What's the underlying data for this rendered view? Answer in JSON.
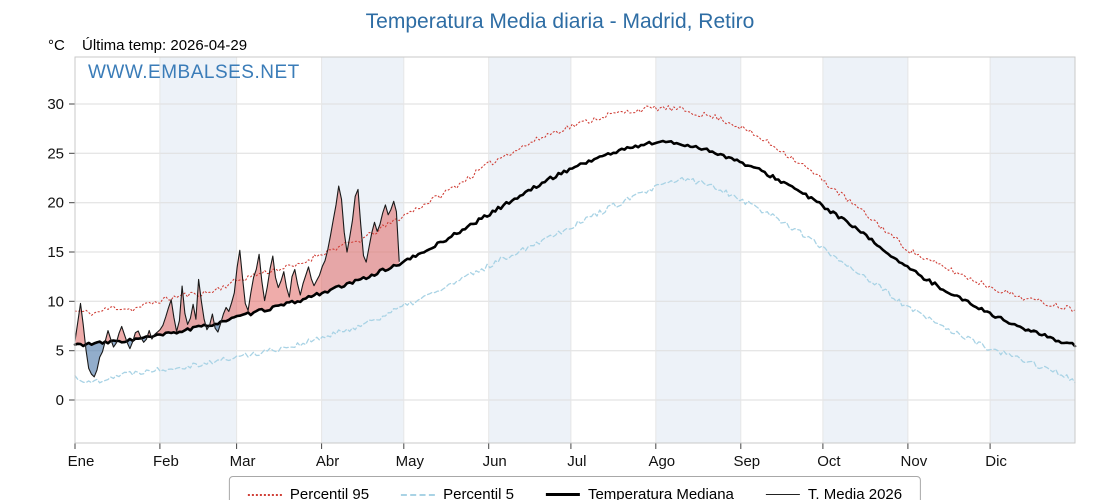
{
  "header": {
    "title": "Temperatura Media diaria - Madrid, Retiro",
    "unit_label": "°C",
    "last_temp_label": "Última temp: 2026-04-29",
    "watermark": "WWW.EMBALSES.NET",
    "title_color": "#2e6da4"
  },
  "legend": {
    "items": [
      "Percentil 95",
      "Percentil 5",
      "Temperatura Mediana",
      "T. Media 2026"
    ]
  },
  "chart_data": {
    "type": "line",
    "title": "Temperatura Media diaria - Madrid, Retiro",
    "ylabel": "°C",
    "ylim": [
      -4.4,
      34.8
    ],
    "yticks": [
      0,
      5,
      10,
      15,
      20,
      25,
      30
    ],
    "x_tick_labels": [
      "Ene",
      "Feb",
      "Mar",
      "Abr",
      "May",
      "Jun",
      "Jul",
      "Ago",
      "Sep",
      "Oct",
      "Nov",
      "Dic"
    ],
    "month_start_days": [
      0,
      31,
      59,
      90,
      120,
      151,
      181,
      212,
      243,
      273,
      304,
      334
    ],
    "days_in_year": 365,
    "grid": true,
    "legend_position": "bottom",
    "band_color": "#edf2f8",
    "fill_above_color": "#e05a55",
    "fill_below_color": "#4a76a8",
    "series": [
      {
        "name": "Percentil 95",
        "color": "#d04038",
        "style": "dotted",
        "width": 1.1,
        "points": [
          [
            1,
            9.0
          ],
          [
            8,
            8.8
          ],
          [
            15,
            9.4
          ],
          [
            22,
            9.2
          ],
          [
            31,
            10.0
          ],
          [
            40,
            10.6
          ],
          [
            50,
            10.9
          ],
          [
            59,
            12.0
          ],
          [
            68,
            12.8
          ],
          [
            75,
            13.3
          ],
          [
            82,
            13.6
          ],
          [
            90,
            14.8
          ],
          [
            98,
            15.6
          ],
          [
            105,
            16.2
          ],
          [
            112,
            17.3
          ],
          [
            120,
            18.6
          ],
          [
            128,
            19.8
          ],
          [
            135,
            20.9
          ],
          [
            143,
            22.3
          ],
          [
            151,
            23.8
          ],
          [
            158,
            24.9
          ],
          [
            165,
            25.8
          ],
          [
            173,
            26.9
          ],
          [
            181,
            27.7
          ],
          [
            188,
            28.3
          ],
          [
            195,
            28.9
          ],
          [
            202,
            29.2
          ],
          [
            208,
            29.5
          ],
          [
            215,
            29.6
          ],
          [
            222,
            29.4
          ],
          [
            228,
            29.0
          ],
          [
            235,
            28.6
          ],
          [
            243,
            27.7
          ],
          [
            250,
            26.6
          ],
          [
            258,
            25.3
          ],
          [
            265,
            24.0
          ],
          [
            273,
            22.3
          ],
          [
            280,
            20.8
          ],
          [
            288,
            19.0
          ],
          [
            296,
            17.2
          ],
          [
            304,
            15.3
          ],
          [
            311,
            14.2
          ],
          [
            318,
            13.4
          ],
          [
            326,
            12.4
          ],
          [
            334,
            11.5
          ],
          [
            342,
            10.7
          ],
          [
            350,
            10.1
          ],
          [
            358,
            9.6
          ],
          [
            365,
            9.2
          ]
        ]
      },
      {
        "name": "Percentil 5",
        "color": "#a9d3e5",
        "style": "dashed",
        "width": 1.3,
        "points": [
          [
            1,
            2.4
          ],
          [
            6,
            1.7
          ],
          [
            12,
            2.2
          ],
          [
            18,
            2.6
          ],
          [
            25,
            2.9
          ],
          [
            31,
            3.1
          ],
          [
            40,
            3.4
          ],
          [
            50,
            3.8
          ],
          [
            59,
            4.3
          ],
          [
            68,
            4.8
          ],
          [
            75,
            5.2
          ],
          [
            82,
            5.6
          ],
          [
            90,
            6.2
          ],
          [
            98,
            6.9
          ],
          [
            105,
            7.6
          ],
          [
            112,
            8.4
          ],
          [
            120,
            9.4
          ],
          [
            128,
            10.4
          ],
          [
            135,
            11.3
          ],
          [
            143,
            12.4
          ],
          [
            151,
            13.5
          ],
          [
            158,
            14.5
          ],
          [
            165,
            15.4
          ],
          [
            173,
            16.5
          ],
          [
            181,
            17.5
          ],
          [
            188,
            18.5
          ],
          [
            195,
            19.4
          ],
          [
            202,
            20.3
          ],
          [
            208,
            21.0
          ],
          [
            215,
            21.8
          ],
          [
            222,
            22.4
          ],
          [
            228,
            22.1
          ],
          [
            235,
            21.5
          ],
          [
            243,
            20.4
          ],
          [
            250,
            19.4
          ],
          [
            258,
            18.2
          ],
          [
            265,
            17.0
          ],
          [
            273,
            15.4
          ],
          [
            280,
            14.1
          ],
          [
            288,
            12.6
          ],
          [
            296,
            11.0
          ],
          [
            304,
            9.4
          ],
          [
            311,
            8.3
          ],
          [
            318,
            7.3
          ],
          [
            326,
            6.2
          ],
          [
            334,
            5.2
          ],
          [
            342,
            4.4
          ],
          [
            350,
            3.7
          ],
          [
            358,
            2.8
          ],
          [
            365,
            2.0
          ]
        ]
      },
      {
        "name": "Temperatura Mediana",
        "color": "#000000",
        "style": "solid",
        "width": 2.6,
        "points": [
          [
            1,
            5.6
          ],
          [
            8,
            5.7
          ],
          [
            15,
            5.9
          ],
          [
            22,
            6.1
          ],
          [
            31,
            6.5
          ],
          [
            40,
            7.0
          ],
          [
            50,
            7.6
          ],
          [
            59,
            8.3
          ],
          [
            68,
            9.0
          ],
          [
            75,
            9.5
          ],
          [
            82,
            10.0
          ],
          [
            90,
            10.8
          ],
          [
            98,
            11.5
          ],
          [
            105,
            12.2
          ],
          [
            112,
            13.0
          ],
          [
            120,
            13.9
          ],
          [
            128,
            15.0
          ],
          [
            135,
            16.1
          ],
          [
            143,
            17.4
          ],
          [
            151,
            18.7
          ],
          [
            158,
            19.9
          ],
          [
            165,
            21.0
          ],
          [
            173,
            22.3
          ],
          [
            181,
            23.4
          ],
          [
            188,
            24.2
          ],
          [
            195,
            24.9
          ],
          [
            202,
            25.5
          ],
          [
            208,
            25.9
          ],
          [
            214,
            26.2
          ],
          [
            220,
            26.0
          ],
          [
            228,
            25.6
          ],
          [
            235,
            25.0
          ],
          [
            243,
            24.1
          ],
          [
            250,
            23.3
          ],
          [
            258,
            22.2
          ],
          [
            265,
            21.1
          ],
          [
            273,
            19.7
          ],
          [
            280,
            18.4
          ],
          [
            288,
            16.8
          ],
          [
            296,
            15.1
          ],
          [
            304,
            13.4
          ],
          [
            311,
            12.2
          ],
          [
            318,
            11.1
          ],
          [
            326,
            9.9
          ],
          [
            334,
            8.8
          ],
          [
            342,
            7.7
          ],
          [
            350,
            6.9
          ],
          [
            358,
            6.1
          ],
          [
            365,
            5.6
          ]
        ]
      },
      {
        "name": "T. Media 2026",
        "color": "#1a1a1a",
        "style": "solid",
        "width": 1.1,
        "points": [
          [
            1,
            5.8
          ],
          [
            2,
            8.0
          ],
          [
            3,
            10.0
          ],
          [
            4,
            7.5
          ],
          [
            5,
            5.0
          ],
          [
            6,
            3.2
          ],
          [
            7,
            2.6
          ],
          [
            8,
            2.4
          ],
          [
            9,
            3.0
          ],
          [
            10,
            4.2
          ],
          [
            11,
            5.0
          ],
          [
            12,
            6.2
          ],
          [
            13,
            6.8
          ],
          [
            14,
            6.0
          ],
          [
            15,
            5.2
          ],
          [
            16,
            6.0
          ],
          [
            17,
            6.8
          ],
          [
            18,
            7.4
          ],
          [
            19,
            6.6
          ],
          [
            20,
            5.8
          ],
          [
            21,
            5.2
          ],
          [
            22,
            6.0
          ],
          [
            23,
            6.6
          ],
          [
            24,
            7.2
          ],
          [
            25,
            6.4
          ],
          [
            26,
            5.6
          ],
          [
            27,
            6.2
          ],
          [
            28,
            6.8
          ],
          [
            29,
            6.2
          ],
          [
            30,
            6.6
          ],
          [
            31,
            7.0
          ],
          [
            33,
            7.6
          ],
          [
            35,
            9.4
          ],
          [
            36,
            10.4
          ],
          [
            37,
            8.2
          ],
          [
            38,
            7.0
          ],
          [
            39,
            8.0
          ],
          [
            40,
            11.6
          ],
          [
            41,
            9.0
          ],
          [
            42,
            7.6
          ],
          [
            43,
            8.4
          ],
          [
            44,
            9.6
          ],
          [
            45,
            8.0
          ],
          [
            46,
            12.0
          ],
          [
            47,
            10.0
          ],
          [
            48,
            8.2
          ],
          [
            49,
            7.0
          ],
          [
            50,
            7.6
          ],
          [
            51,
            8.6
          ],
          [
            52,
            7.4
          ],
          [
            53,
            6.8
          ],
          [
            54,
            7.6
          ],
          [
            55,
            8.8
          ],
          [
            56,
            9.6
          ],
          [
            57,
            8.8
          ],
          [
            58,
            10.0
          ],
          [
            59,
            11.0
          ],
          [
            60,
            13.6
          ],
          [
            61,
            15.0
          ],
          [
            62,
            12.4
          ],
          [
            63,
            10.0
          ],
          [
            64,
            9.2
          ],
          [
            65,
            10.6
          ],
          [
            66,
            12.2
          ],
          [
            67,
            13.4
          ],
          [
            68,
            14.6
          ],
          [
            69,
            12.0
          ],
          [
            70,
            10.2
          ],
          [
            71,
            11.4
          ],
          [
            72,
            13.2
          ],
          [
            73,
            14.4
          ],
          [
            74,
            12.6
          ],
          [
            75,
            11.2
          ],
          [
            76,
            12.0
          ],
          [
            77,
            13.0
          ],
          [
            78,
            11.6
          ],
          [
            79,
            10.6
          ],
          [
            80,
            12.4
          ],
          [
            81,
            13.2
          ],
          [
            82,
            12.0
          ],
          [
            83,
            10.8
          ],
          [
            84,
            11.6
          ],
          [
            85,
            12.8
          ],
          [
            86,
            13.6
          ],
          [
            87,
            12.2
          ],
          [
            88,
            11.4
          ],
          [
            89,
            12.0
          ],
          [
            90,
            12.8
          ],
          [
            91,
            13.4
          ],
          [
            92,
            14.2
          ],
          [
            93,
            15.4
          ],
          [
            94,
            16.6
          ],
          [
            95,
            18.0
          ],
          [
            96,
            20.0
          ],
          [
            97,
            21.6
          ],
          [
            98,
            20.2
          ],
          [
            99,
            17.0
          ],
          [
            100,
            15.2
          ],
          [
            101,
            16.4
          ],
          [
            102,
            18.4
          ],
          [
            103,
            20.6
          ],
          [
            104,
            21.2
          ],
          [
            105,
            18.0
          ],
          [
            106,
            14.8
          ],
          [
            107,
            14.0
          ],
          [
            108,
            15.6
          ],
          [
            109,
            17.0
          ],
          [
            110,
            18.2
          ],
          [
            111,
            17.2
          ],
          [
            112,
            17.8
          ],
          [
            113,
            18.8
          ],
          [
            114,
            19.6
          ],
          [
            115,
            18.6
          ],
          [
            116,
            19.4
          ],
          [
            117,
            20.2
          ],
          [
            118,
            19.0
          ],
          [
            119,
            14.0
          ]
        ]
      }
    ]
  }
}
